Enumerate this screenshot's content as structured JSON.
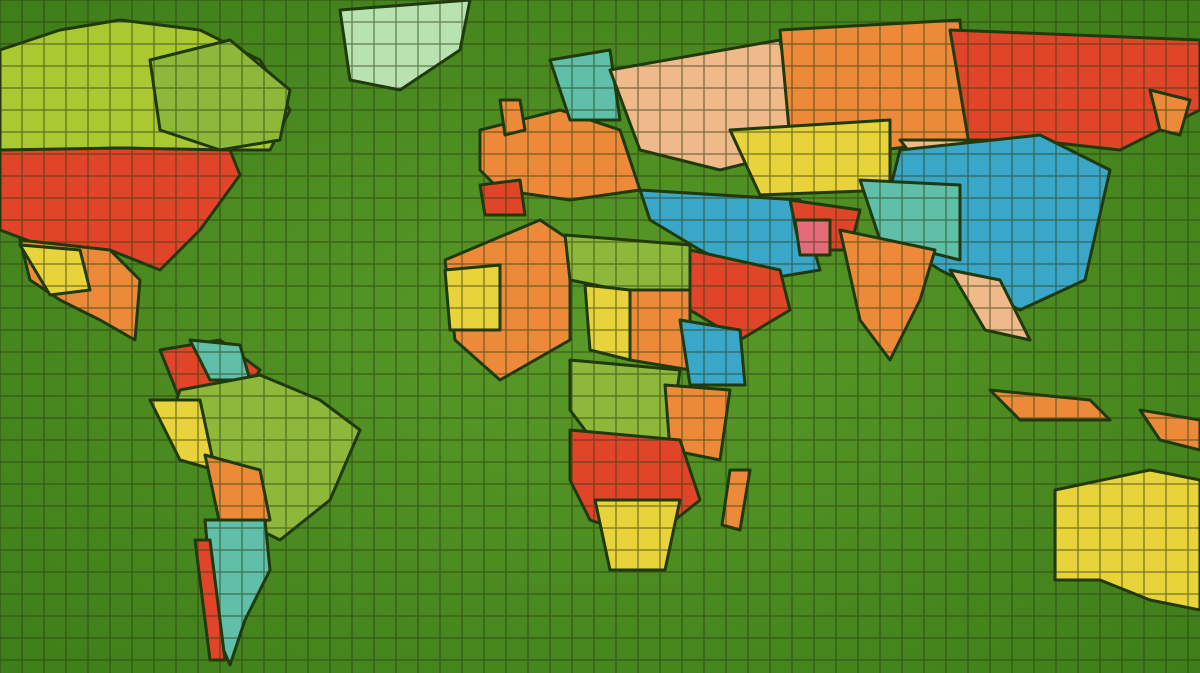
{
  "map": {
    "style": "painted mosaic world map",
    "colors": {
      "ocean": "#4f8f22",
      "ocean_dark": "#3d7a18",
      "red": "#e0452a",
      "orange": "#ec8a3a",
      "peach": "#efb98a",
      "yellow": "#e8d33a",
      "lime": "#a9c832",
      "green": "#8db83a",
      "teal": "#5fbfa8",
      "blue": "#3aa6c8",
      "pale_green": "#b8e3b0",
      "pink": "#e46a7a"
    }
  }
}
